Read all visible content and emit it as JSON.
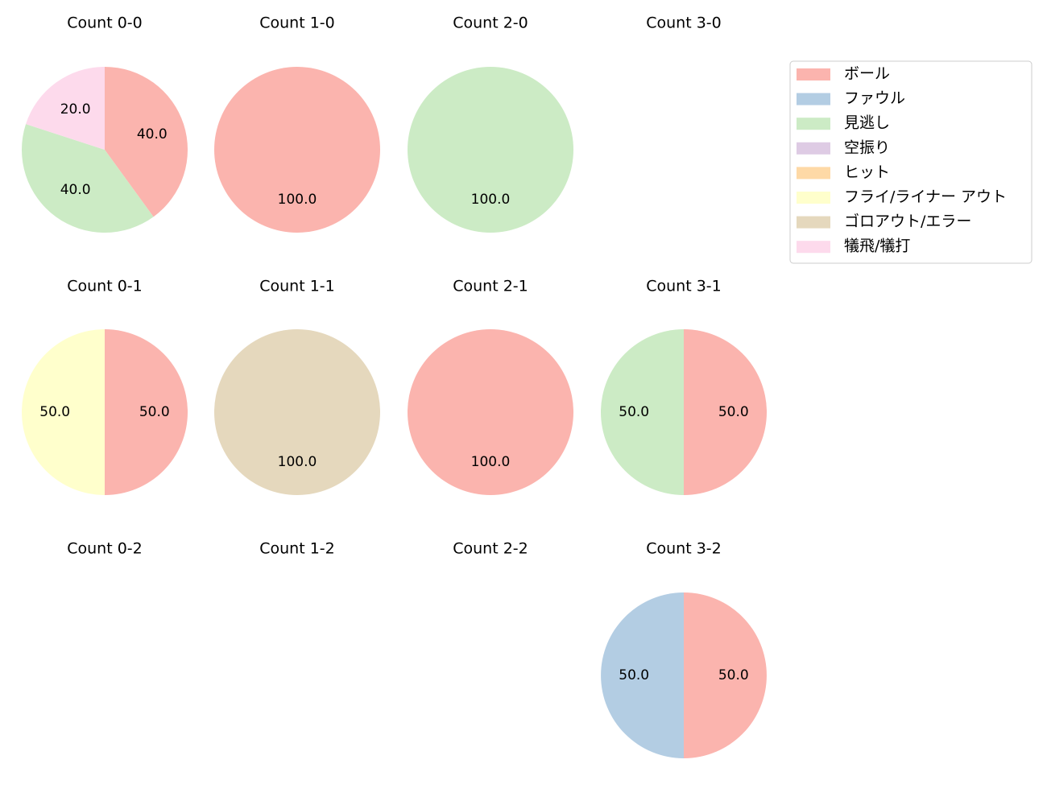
{
  "legend": {
    "items": [
      {
        "label": "ボール",
        "color": "#fbb4ae"
      },
      {
        "label": "ファウル",
        "color": "#b3cde3"
      },
      {
        "label": "見逃し",
        "color": "#ccebc5"
      },
      {
        "label": "空振り",
        "color": "#decbe4"
      },
      {
        "label": "ヒット",
        "color": "#fed9a6"
      },
      {
        "label": "フライ/ライナー アウト",
        "color": "#ffffcc"
      },
      {
        "label": "ゴロアウト/エラー",
        "color": "#e5d8bd"
      },
      {
        "label": "犠飛/犠打",
        "color": "#fddaec"
      }
    ],
    "placement": "right"
  },
  "chart_data": [
    {
      "type": "pie",
      "title": "Count 0-0",
      "slices": [
        {
          "category": "ボール",
          "value": 40.0,
          "label": "40.0"
        },
        {
          "category": "見逃し",
          "value": 40.0,
          "label": "40.0"
        },
        {
          "category": "犠飛/犠打",
          "value": 20.0,
          "label": "20.0"
        }
      ]
    },
    {
      "type": "pie",
      "title": "Count 1-0",
      "slices": [
        {
          "category": "ボール",
          "value": 100.0,
          "label": "100.0"
        }
      ]
    },
    {
      "type": "pie",
      "title": "Count 2-0",
      "slices": [
        {
          "category": "見逃し",
          "value": 100.0,
          "label": "100.0"
        }
      ]
    },
    {
      "type": "pie",
      "title": "Count 3-0",
      "slices": []
    },
    {
      "type": "pie",
      "title": "Count 0-1",
      "slices": [
        {
          "category": "ボール",
          "value": 50.0,
          "label": "50.0"
        },
        {
          "category": "フライ/ライナー アウト",
          "value": 50.0,
          "label": "50.0"
        }
      ]
    },
    {
      "type": "pie",
      "title": "Count 1-1",
      "slices": [
        {
          "category": "ゴロアウト/エラー",
          "value": 100.0,
          "label": "100.0"
        }
      ]
    },
    {
      "type": "pie",
      "title": "Count 2-1",
      "slices": [
        {
          "category": "ボール",
          "value": 100.0,
          "label": "100.0"
        }
      ]
    },
    {
      "type": "pie",
      "title": "Count 3-1",
      "slices": [
        {
          "category": "ボール",
          "value": 50.0,
          "label": "50.0"
        },
        {
          "category": "見逃し",
          "value": 50.0,
          "label": "50.0"
        }
      ]
    },
    {
      "type": "pie",
      "title": "Count 0-2",
      "slices": []
    },
    {
      "type": "pie",
      "title": "Count 1-2",
      "slices": []
    },
    {
      "type": "pie",
      "title": "Count 2-2",
      "slices": []
    },
    {
      "type": "pie",
      "title": "Count 3-2",
      "slices": [
        {
          "category": "ボール",
          "value": 50.0,
          "label": "50.0"
        },
        {
          "category": "ファウル",
          "value": 50.0,
          "label": "50.0"
        }
      ]
    }
  ]
}
